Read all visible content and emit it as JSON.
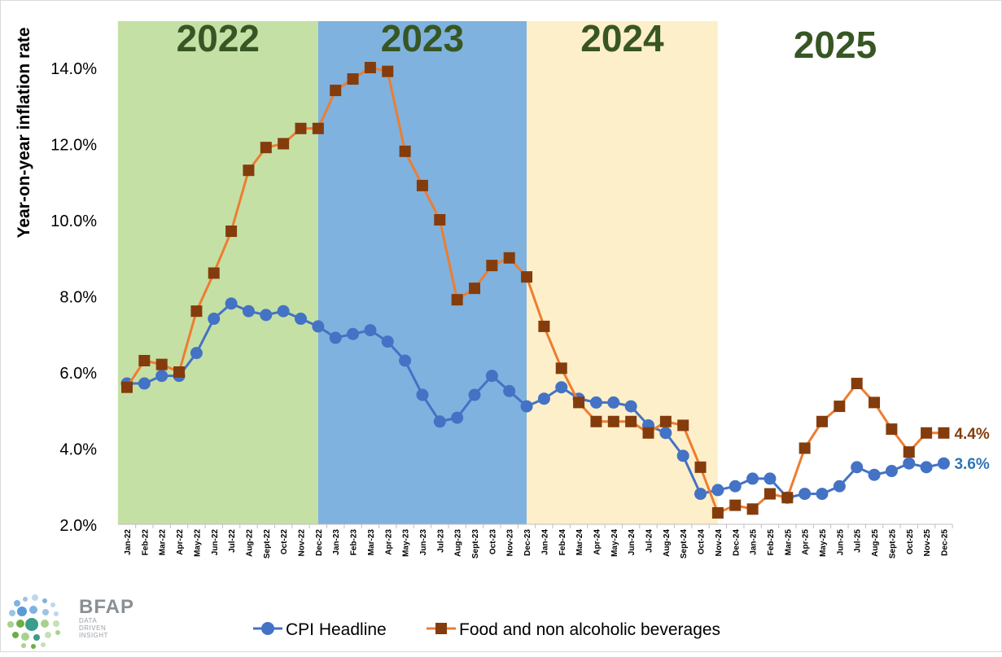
{
  "chart_data": {
    "type": "line",
    "ylabel": "Year-on-year inflation rate",
    "xlabel": "",
    "title": "",
    "ylim": [
      2.0,
      15.0
    ],
    "yticks": [
      "2.0%",
      "4.0%",
      "6.0%",
      "8.0%",
      "10.0%",
      "12.0%",
      "14.0%"
    ],
    "yticks_values": [
      2,
      4,
      6,
      8,
      10,
      12,
      14
    ],
    "grid": false,
    "legend_position": "bottom",
    "categories": [
      "Jan-22",
      "Feb-22",
      "Mar-22",
      "Apr-22",
      "May-22",
      "Jun-22",
      "Jul-22",
      "Aug-22",
      "Sept-22",
      "Oct-22",
      "Nov-22",
      "Dec-22",
      "Jan-23",
      "Feb-23",
      "Mar-23",
      "Apr-23",
      "May-23",
      "Jun-23",
      "Jul-23",
      "Aug-23",
      "Sept-23",
      "Oct-23",
      "Nov-23",
      "Dec-23",
      "Jan-24",
      "Feb-24",
      "Mar-24",
      "Apr-24",
      "May-24",
      "Jun-24",
      "Jul-24",
      "Aug-24",
      "Sept-24",
      "Oct-24",
      "Nov-24",
      "Dec-24",
      "Jan-25",
      "Feb-25",
      "Mar-25",
      "Apr-25",
      "May-25",
      "Jun-25",
      "Jul-25",
      "Aug-25",
      "Sept-25",
      "Oct-25",
      "Nov-25",
      "Dec-25"
    ],
    "year_bands": [
      {
        "label": "2022",
        "start": "Jan-22",
        "end": "Dec-22",
        "color": "#c5e0a5"
      },
      {
        "label": "2023",
        "start": "Dec-22",
        "end": "Dec-23",
        "color": "#7fb2de"
      },
      {
        "label": "2024",
        "start": "Dec-23",
        "end": "Nov-24",
        "color": "#fdefc9"
      },
      {
        "label": "2025",
        "start": "Nov-24",
        "end": "Dec-25",
        "color": "#ffffff"
      }
    ],
    "year_label_color": "#375623",
    "series": [
      {
        "name": "CPI Headline",
        "color": "#4472c4",
        "marker": "circle",
        "values": [
          5.7,
          5.7,
          5.9,
          5.9,
          6.5,
          7.4,
          7.8,
          7.6,
          7.5,
          7.6,
          7.4,
          7.2,
          6.9,
          7.0,
          7.1,
          6.8,
          6.3,
          5.4,
          4.7,
          4.8,
          5.4,
          5.9,
          5.5,
          5.1,
          5.3,
          5.6,
          5.3,
          5.2,
          5.2,
          5.1,
          4.6,
          4.4,
          3.8,
          2.8,
          2.9,
          3.0,
          3.2,
          3.2,
          2.7,
          2.8,
          2.8,
          3.0,
          3.5,
          3.3,
          3.4,
          3.6,
          3.5,
          3.6
        ],
        "end_label": "3.6%"
      },
      {
        "name": "Food and non alcoholic beverages",
        "color": "#ed7d31",
        "marker": "square",
        "marker_color": "#843c0c",
        "values": [
          5.6,
          6.3,
          6.2,
          6.0,
          7.6,
          8.6,
          9.7,
          11.3,
          11.9,
          12.0,
          12.4,
          12.4,
          13.4,
          13.7,
          14.0,
          13.9,
          11.8,
          10.9,
          10.0,
          7.9,
          8.2,
          8.8,
          9.0,
          8.5,
          7.2,
          6.1,
          5.2,
          4.7,
          4.7,
          4.7,
          4.4,
          4.7,
          4.6,
          3.5,
          2.3,
          2.5,
          2.4,
          2.8,
          2.7,
          4.0,
          4.7,
          5.1,
          5.7,
          5.2,
          4.5,
          3.9,
          4.4,
          4.4
        ],
        "end_label": "4.4%"
      }
    ]
  },
  "legend": [
    {
      "label": "CPI Headline"
    },
    {
      "label": "Food and non alcoholic beverages"
    }
  ],
  "logo": {
    "name": "BFAP",
    "tagline_lines": [
      "DATA",
      "DRIVEN",
      "INSIGHT"
    ]
  }
}
